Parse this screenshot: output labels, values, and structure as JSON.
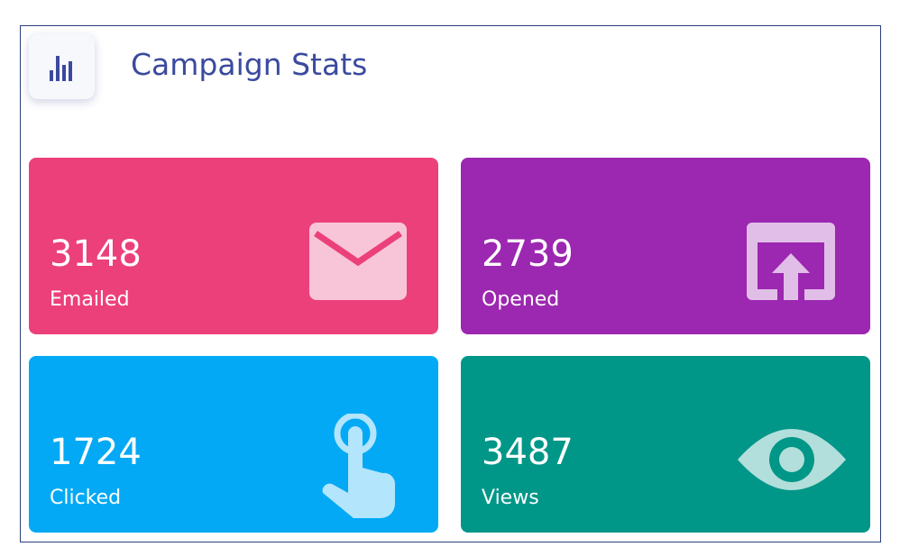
{
  "header": {
    "title": "Campaign Stats"
  },
  "cards": [
    {
      "value": 3148,
      "label": "Emailed"
    },
    {
      "value": 2739,
      "label": "Opened"
    },
    {
      "value": 1724,
      "label": "Clicked"
    },
    {
      "value": 3487,
      "label": "Views"
    }
  ]
}
